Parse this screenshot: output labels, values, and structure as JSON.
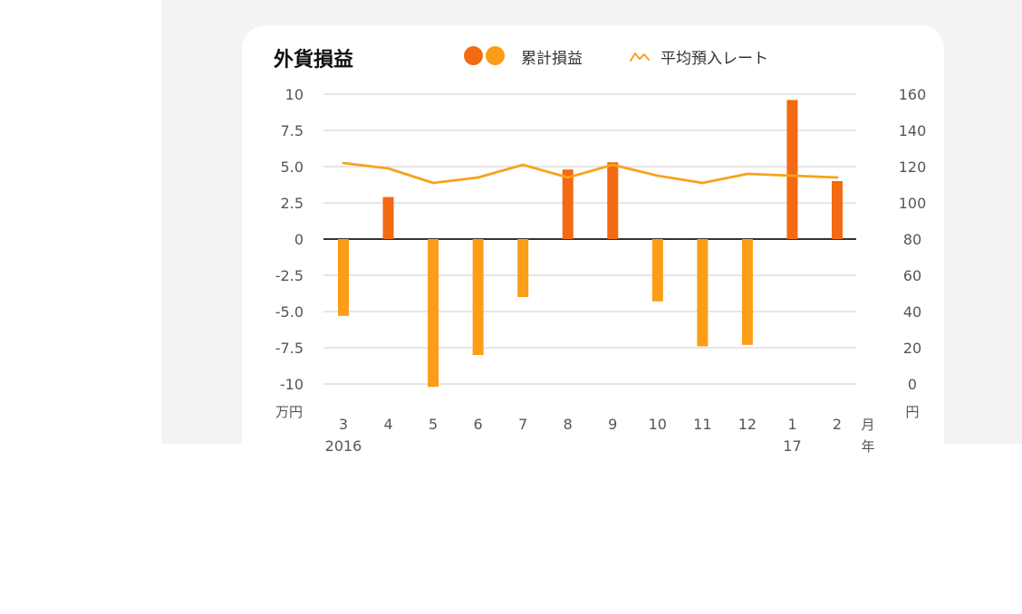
{
  "card": {
    "title": "外貨損益",
    "legend": [
      {
        "label": "累計損益",
        "colors": [
          "#f26a11",
          "#fb9d17"
        ]
      },
      {
        "label": "平均預入レート",
        "color": "#f7a31d"
      }
    ]
  },
  "colors": {
    "gain_bar": "#f26a11",
    "loss_bar": "#fb9d17",
    "rate_line": "#f7a31d",
    "grid": "#d8d8d8",
    "zero_line": "#333333",
    "tick_text": "#555555"
  },
  "chart_data": {
    "type": "bar",
    "title": "外貨損益",
    "categories": [
      "3",
      "4",
      "5",
      "6",
      "7",
      "8",
      "9",
      "10",
      "11",
      "12",
      "1",
      "2"
    ],
    "x_unit": "月",
    "year_labels": [
      {
        "index": 0,
        "label": "2016"
      },
      {
        "index": 10,
        "label": "17"
      }
    ],
    "year_unit": "年",
    "series": [
      {
        "name": "累計損益",
        "type": "bar",
        "axis": "left",
        "values": [
          -5.3,
          2.9,
          -10.2,
          -8.0,
          -4.0,
          4.8,
          5.3,
          -4.3,
          -7.4,
          -7.3,
          9.6,
          4.0
        ]
      },
      {
        "name": "平均預入レート",
        "type": "line",
        "axis": "right",
        "values": [
          122,
          119,
          111,
          114,
          121,
          114,
          121,
          115,
          111,
          116,
          115,
          114
        ]
      }
    ],
    "y_left": {
      "unit": "万円",
      "ylim": [
        -10,
        10
      ],
      "ticks": [
        "10",
        "7.5",
        "5.0",
        "2.5",
        "0",
        "-2.5",
        "-5.0",
        "-7.5",
        "-10"
      ]
    },
    "y_right": {
      "unit": "円",
      "ylim": [
        0,
        160
      ],
      "ticks": [
        "160",
        "140",
        "120",
        "100",
        "80",
        "60",
        "40",
        "20",
        "0"
      ]
    },
    "grid": true,
    "legend_position": "top"
  }
}
